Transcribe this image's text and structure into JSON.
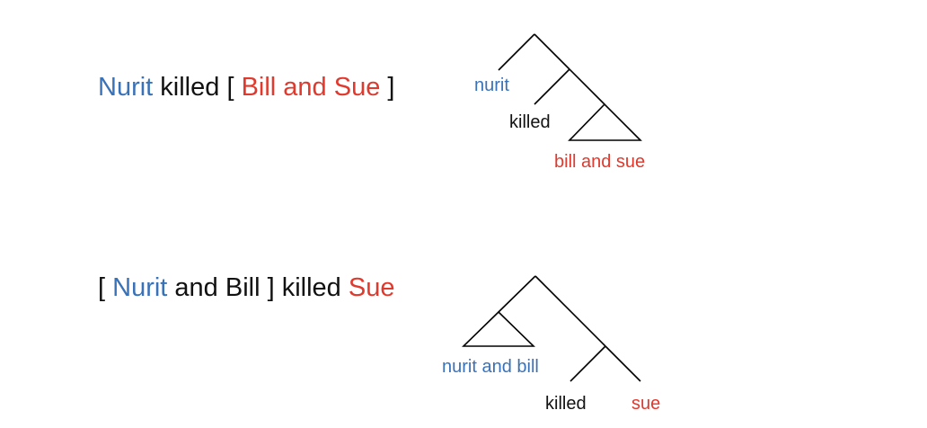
{
  "sentence_1": {
    "w1": "Nurit",
    "w2": "killed [",
    "w3": "Bill and Sue",
    "w4": "]"
  },
  "sentence_2": {
    "w1": "[",
    "w2": "Nurit",
    "w3": "and Bill ] killed",
    "w4": "Sue"
  },
  "tree_1": {
    "leaf_subject": "nurit",
    "leaf_verb": "killed",
    "leaf_object": "bill and sue"
  },
  "tree_2": {
    "leaf_subject": "nurit and bill",
    "leaf_verb": "killed",
    "leaf_object": "sue"
  },
  "colors": {
    "subject": "#3a72b8",
    "object": "#e0392d",
    "text": "#111111"
  }
}
